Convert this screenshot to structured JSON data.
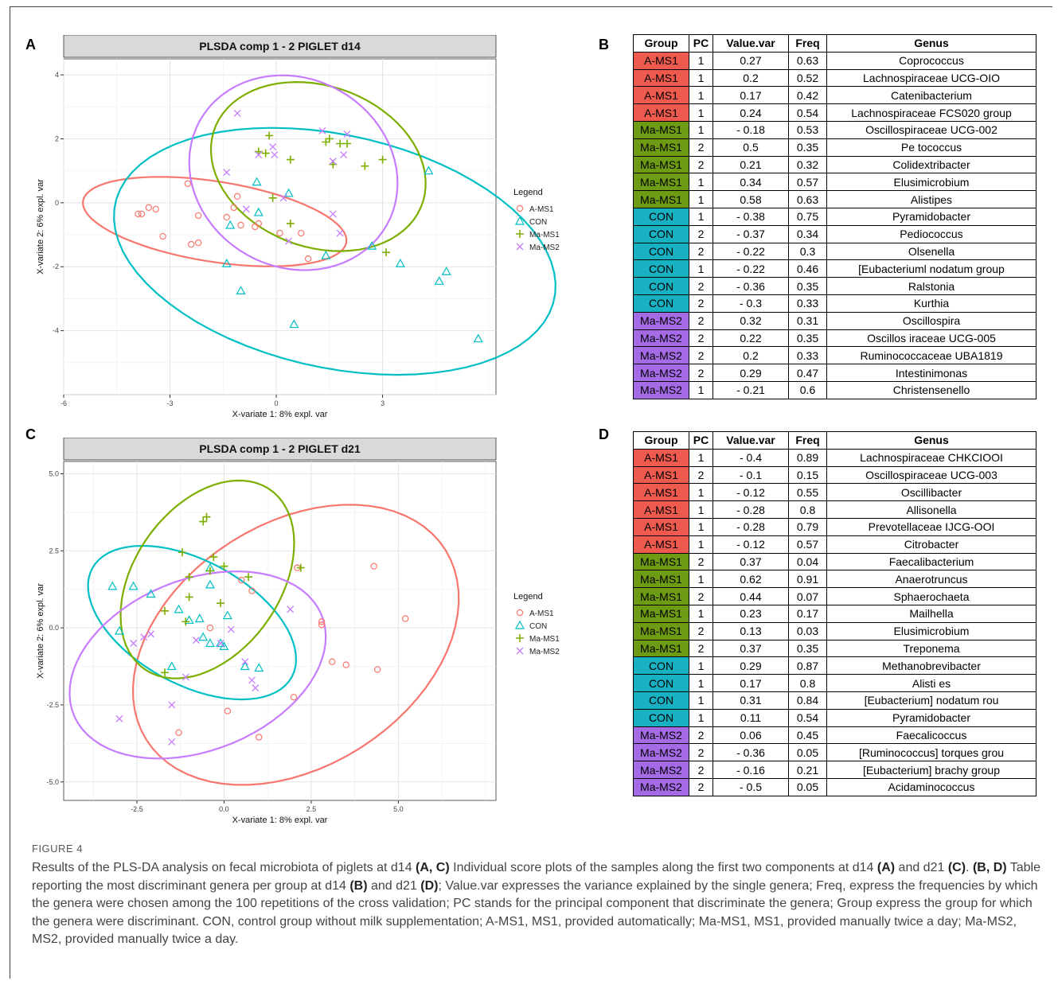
{
  "panels": {
    "A": "A",
    "B": "B",
    "C": "C",
    "D": "D"
  },
  "chart_data": [
    {
      "type": "scatter",
      "title": "PLSDA comp 1 - 2 PIGLET d14",
      "xlabel": "X-variate 1: 8% expl. var",
      "ylabel": "X-variate 2: 6% expl. var",
      "xlim": [
        -6,
        6.2
      ],
      "ylim": [
        -6,
        4.5
      ],
      "xticks": [
        -6,
        -3,
        0,
        3
      ],
      "yticks": [
        4,
        2,
        0,
        -2,
        -4
      ],
      "xtick_labels": [
        "-6",
        "-3",
        "0",
        "3"
      ],
      "ytick_labels": [
        "4",
        "2",
        "0",
        "-2",
        "-4"
      ],
      "grid": true,
      "legend_title": "Legend",
      "legend_position": "right",
      "series": [
        {
          "name": "A-MS1",
          "marker": "circle",
          "color": "#F8766D",
          "points": [
            [
              -3.9,
              -0.35
            ],
            [
              -3.8,
              -0.35
            ],
            [
              -3.6,
              -0.15
            ],
            [
              -3.4,
              -0.2
            ],
            [
              -3.2,
              -1.05
            ],
            [
              -2.5,
              0.6
            ],
            [
              -2.4,
              -1.3
            ],
            [
              -2.2,
              -0.4
            ],
            [
              -2.2,
              -1.25
            ],
            [
              -1.4,
              -0.45
            ],
            [
              -1.2,
              -0.15
            ],
            [
              -1.1,
              0.2
            ],
            [
              -1.0,
              -0.7
            ],
            [
              -0.6,
              -0.75
            ],
            [
              -0.5,
              -0.65
            ],
            [
              0.1,
              -0.95
            ],
            [
              0.7,
              -0.95
            ],
            [
              0.9,
              -1.75
            ]
          ]
        },
        {
          "name": "CON",
          "marker": "triangle",
          "color": "#00BFC4",
          "points": [
            [
              -0.55,
              0.65
            ],
            [
              -1.3,
              -0.7
            ],
            [
              -0.5,
              -0.3
            ],
            [
              -1.4,
              -1.9
            ],
            [
              -1.0,
              -2.75
            ],
            [
              0.35,
              0.3
            ],
            [
              0.5,
              -3.8
            ],
            [
              1.4,
              -1.65
            ],
            [
              2.7,
              -1.35
            ],
            [
              3.5,
              -1.9
            ],
            [
              4.6,
              -2.45
            ],
            [
              4.8,
              -2.15
            ],
            [
              5.7,
              -4.25
            ],
            [
              4.3,
              1.0
            ]
          ]
        },
        {
          "name": "Ma-MS1",
          "marker": "plus",
          "color": "#7CAE00",
          "points": [
            [
              -0.5,
              1.6
            ],
            [
              -0.3,
              1.55
            ],
            [
              -0.2,
              2.1
            ],
            [
              0.4,
              1.35
            ],
            [
              1.4,
              1.9
            ],
            [
              1.5,
              2.0
            ],
            [
              1.6,
              1.2
            ],
            [
              1.8,
              1.85
            ],
            [
              2.0,
              1.85
            ],
            [
              2.5,
              1.15
            ],
            [
              3.0,
              1.35
            ],
            [
              -0.1,
              0.15
            ],
            [
              0.4,
              -0.65
            ],
            [
              3.1,
              -1.55
            ]
          ]
        },
        {
          "name": "Ma-MS2",
          "marker": "x",
          "color": "#C77CFF",
          "points": [
            [
              -1.1,
              2.8
            ],
            [
              -1.4,
              0.95
            ],
            [
              -0.85,
              -0.2
            ],
            [
              -0.5,
              1.5
            ],
            [
              -0.1,
              1.75
            ],
            [
              -0.05,
              1.5
            ],
            [
              0.2,
              0.15
            ],
            [
              0.35,
              -1.2
            ],
            [
              1.3,
              2.25
            ],
            [
              1.6,
              1.3
            ],
            [
              1.9,
              1.5
            ],
            [
              2.0,
              2.15
            ],
            [
              1.6,
              -0.35
            ],
            [
              1.8,
              -0.95
            ]
          ]
        }
      ]
    },
    {
      "type": "scatter",
      "title": "PLSDA comp 1 - 2 PIGLET d21",
      "xlabel": "X-variate 1: 8% expl. var",
      "ylabel": "X-variate 2: 6% expl. var",
      "xlim": [
        -4.6,
        7.8
      ],
      "ylim": [
        -5.6,
        5.4
      ],
      "xticks": [
        -2.5,
        0.0,
        2.5,
        5.0
      ],
      "yticks": [
        5.0,
        2.5,
        0.0,
        -2.5,
        -5.0
      ],
      "xtick_labels": [
        "-2.5",
        "0.0",
        "2.5",
        "5.0"
      ],
      "ytick_labels": [
        "5.0",
        "2.5",
        "0.0",
        "-2.5",
        "-5.0"
      ],
      "grid": true,
      "legend_title": "Legend",
      "legend_position": "right",
      "series": [
        {
          "name": "A-MS1",
          "marker": "circle",
          "color": "#F8766D",
          "points": [
            [
              -0.4,
              0.0
            ],
            [
              0.1,
              -2.7
            ],
            [
              0.5,
              1.55
            ],
            [
              0.8,
              1.2
            ],
            [
              1.0,
              -3.55
            ],
            [
              2.0,
              -2.25
            ],
            [
              2.1,
              1.95
            ],
            [
              2.8,
              0.2
            ],
            [
              2.8,
              0.1
            ],
            [
              3.1,
              -1.1
            ],
            [
              3.5,
              -1.2
            ],
            [
              4.3,
              2.0
            ],
            [
              4.4,
              -1.35
            ],
            [
              5.2,
              0.3
            ],
            [
              -1.3,
              -3.4
            ]
          ]
        },
        {
          "name": "CON",
          "marker": "triangle",
          "color": "#00BFC4",
          "points": [
            [
              -3.2,
              1.35
            ],
            [
              -2.6,
              1.35
            ],
            [
              -2.1,
              1.1
            ],
            [
              -3.0,
              -0.1
            ],
            [
              -1.3,
              0.6
            ],
            [
              -1.0,
              0.25
            ],
            [
              -0.7,
              0.3
            ],
            [
              -0.6,
              -0.3
            ],
            [
              -0.4,
              -0.5
            ],
            [
              -0.1,
              -0.5
            ],
            [
              0.0,
              -0.6
            ],
            [
              0.1,
              0.4
            ],
            [
              -0.4,
              1.4
            ],
            [
              -0.4,
              1.95
            ],
            [
              0.6,
              -1.25
            ],
            [
              1.0,
              -1.3
            ],
            [
              -1.5,
              -1.25
            ]
          ]
        },
        {
          "name": "Ma-MS1",
          "marker": "plus",
          "color": "#7CAE00",
          "points": [
            [
              -0.6,
              3.45
            ],
            [
              -0.5,
              3.6
            ],
            [
              -1.2,
              2.45
            ],
            [
              -0.3,
              2.3
            ],
            [
              0.0,
              2.0
            ],
            [
              -0.4,
              1.85
            ],
            [
              -1.0,
              1.65
            ],
            [
              0.7,
              1.65
            ],
            [
              -1.0,
              1.0
            ],
            [
              -0.1,
              0.8
            ],
            [
              -1.7,
              0.55
            ],
            [
              -1.1,
              0.2
            ],
            [
              -1.7,
              -1.45
            ],
            [
              2.2,
              1.95
            ]
          ]
        },
        {
          "name": "Ma-MS2",
          "marker": "x",
          "color": "#C77CFF",
          "points": [
            [
              -2.6,
              -0.5
            ],
            [
              -2.3,
              -0.3
            ],
            [
              -2.1,
              -0.2
            ],
            [
              -0.8,
              -0.4
            ],
            [
              -0.1,
              -0.5
            ],
            [
              0.2,
              -0.05
            ],
            [
              0.6,
              -1.1
            ],
            [
              0.8,
              -1.7
            ],
            [
              0.9,
              -1.95
            ],
            [
              1.9,
              0.6
            ],
            [
              -1.1,
              -1.6
            ],
            [
              -1.5,
              -2.5
            ],
            [
              -3.0,
              -2.95
            ],
            [
              -1.5,
              -3.7
            ]
          ]
        }
      ]
    }
  ],
  "table_B": {
    "headers": [
      "Group",
      "PC",
      "Value.var",
      "Freq",
      "Genus"
    ],
    "rows": [
      [
        "A-MS1",
        "1",
        "0.27",
        "0.63",
        "Coprococcus"
      ],
      [
        "A-MS1",
        "1",
        "0.2",
        "0.52",
        "Lachnospiraceae UCG-OIO"
      ],
      [
        "A-MS1",
        "1",
        "0.17",
        "0.42",
        "Catenibacterium"
      ],
      [
        "A-MS1",
        "1",
        "0.24",
        "0.54",
        "Lachnospiraceae FCS020 group"
      ],
      [
        "Ma-MS1",
        "1",
        "- 0.18",
        "0.53",
        "Oscillospiraceae UCG-002"
      ],
      [
        "Ma-MS1",
        "2",
        "0.5",
        "0.35",
        "Pe tococcus"
      ],
      [
        "Ma-MS1",
        "2",
        "0.21",
        "0.32",
        "Colidextribacter"
      ],
      [
        "Ma-MS1",
        "1",
        "0.34",
        "0.57",
        "Elusimicrobium"
      ],
      [
        "Ma-MS1",
        "1",
        "0.58",
        "0.63",
        "Alistipes"
      ],
      [
        "CON",
        "1",
        "- 0.38",
        "0.75",
        "Pyramidobacter"
      ],
      [
        "CON",
        "2",
        "- 0.37",
        "0.34",
        "Pediococcus"
      ],
      [
        "CON",
        "2",
        "- 0.22",
        "0.3",
        "Olsenella"
      ],
      [
        "CON",
        "1",
        "- 0.22",
        "0.46",
        "[Eubacteriuml nodatum group"
      ],
      [
        "CON",
        "2",
        "- 0.36",
        "0.35",
        "Ralstonia"
      ],
      [
        "CON",
        "2",
        "- 0.3",
        "0.33",
        "Kurthia"
      ],
      [
        "Ma-MS2",
        "2",
        "0.32",
        "0.31",
        "Oscillospira"
      ],
      [
        "Ma-MS2",
        "2",
        "0.22",
        "0.35",
        "Oscillos iraceae UCG-005"
      ],
      [
        "Ma-MS2",
        "2",
        "0.2",
        "0.33",
        "Ruminococcaceae UBA1819"
      ],
      [
        "Ma-MS2",
        "2",
        "0.29",
        "0.47",
        "Intestinimonas"
      ],
      [
        "Ma-MS2",
        "1",
        "- 0.21",
        "0.6",
        "Christensenello"
      ]
    ]
  },
  "table_D": {
    "headers": [
      "Group",
      "PC",
      "Value.var",
      "Freq",
      "Genus"
    ],
    "rows": [
      [
        "A-MS1",
        "1",
        "- 0.4",
        "0.89",
        "Lachnospiraceae CHKCIOOI"
      ],
      [
        "A-MS1",
        "2",
        "- 0.1",
        "0.15",
        "Oscillospiraceae UCG-003"
      ],
      [
        "A-MS1",
        "1",
        "- 0.12",
        "0.55",
        "Oscillibacter"
      ],
      [
        "A-MS1",
        "1",
        "- 0.28",
        "0.8",
        "Allisonella"
      ],
      [
        "A-MS1",
        "1",
        "- 0.28",
        "0.79",
        "Prevotellaceae IJCG-OOI"
      ],
      [
        "A-MS1",
        "1",
        "- 0.12",
        "0.57",
        "Citrobacter"
      ],
      [
        "Ma-MS1",
        "2",
        "0.37",
        "0.04",
        "Faecalibacterium"
      ],
      [
        "Ma-MS1",
        "1",
        "0.62",
        "0.91",
        "Anaerotruncus"
      ],
      [
        "Ma-MS1",
        "2",
        "0.44",
        "0.07",
        "Sphaerochaeta"
      ],
      [
        "Ma-MS1",
        "1",
        "0.23",
        "0.17",
        "Mailhella"
      ],
      [
        "Ma-MS1",
        "2",
        "0.13",
        "0.03",
        "Elusimicrobium"
      ],
      [
        "Ma-MS1",
        "2",
        "0.37",
        "0.35",
        "Treponema"
      ],
      [
        "CON",
        "1",
        "0.29",
        "0.87",
        "Methanobrevibacter"
      ],
      [
        "CON",
        "1",
        "0.17",
        "0.8",
        "Alisti es"
      ],
      [
        "CON",
        "1",
        "0.31",
        "0.84",
        "[Eubacterium] nodatum rou"
      ],
      [
        "CON",
        "1",
        "0.11",
        "0.54",
        "Pyramidobacter"
      ],
      [
        "Ma-MS2",
        "2",
        "0.06",
        "0.45",
        "Faecalicoccus"
      ],
      [
        "Ma-MS2",
        "2",
        "- 0.36",
        "0.05",
        "[Ruminococcus] torques grou"
      ],
      [
        "Ma-MS2",
        "2",
        "- 0.16",
        "0.21",
        "[Eubacterium] brachy group"
      ],
      [
        "Ma-MS2",
        "2",
        "- 0.5",
        "0.05",
        "Acidaminococcus"
      ]
    ]
  },
  "group_colors": {
    "A-MS1": "#EF5A4F",
    "Ma-MS1": "#6E9B14",
    "CON": "#17B1C2",
    "Ma-MS2": "#A56BE6"
  },
  "caption": {
    "figure_label": "FIGURE 4",
    "segments": [
      {
        "t": "Results of the PLS-DA analysis on fecal microbiota of piglets at d14 ",
        "b": false
      },
      {
        "t": "(A, C)",
        "b": true
      },
      {
        "t": " Individual score plots of the samples along the first two components at d14 ",
        "b": false
      },
      {
        "t": "(A)",
        "b": true
      },
      {
        "t": " and d21 ",
        "b": false
      },
      {
        "t": "(C)",
        "b": true
      },
      {
        "t": ". ",
        "b": false
      },
      {
        "t": "(B, D)",
        "b": true
      },
      {
        "t": " Table reporting the most discriminant genera per group at d14 ",
        "b": false
      },
      {
        "t": "(B)",
        "b": true
      },
      {
        "t": " and d21 ",
        "b": false
      },
      {
        "t": "(D)",
        "b": true
      },
      {
        "t": "; Value.var expresses the variance explained by the single genera; Freq, express the frequencies by which the genera were chosen among the 100 repetitions of the cross validation; PC stands for the principal component that discriminate the genera; Group express the group for which the genera were discriminant. CON, control group without milk supplementation; A-MS1, MS1, provided automatically; Ma-MS1, MS1, provided manually twice a day; Ma-MS2, MS2, provided manually twice a day.",
        "b": false
      }
    ]
  }
}
